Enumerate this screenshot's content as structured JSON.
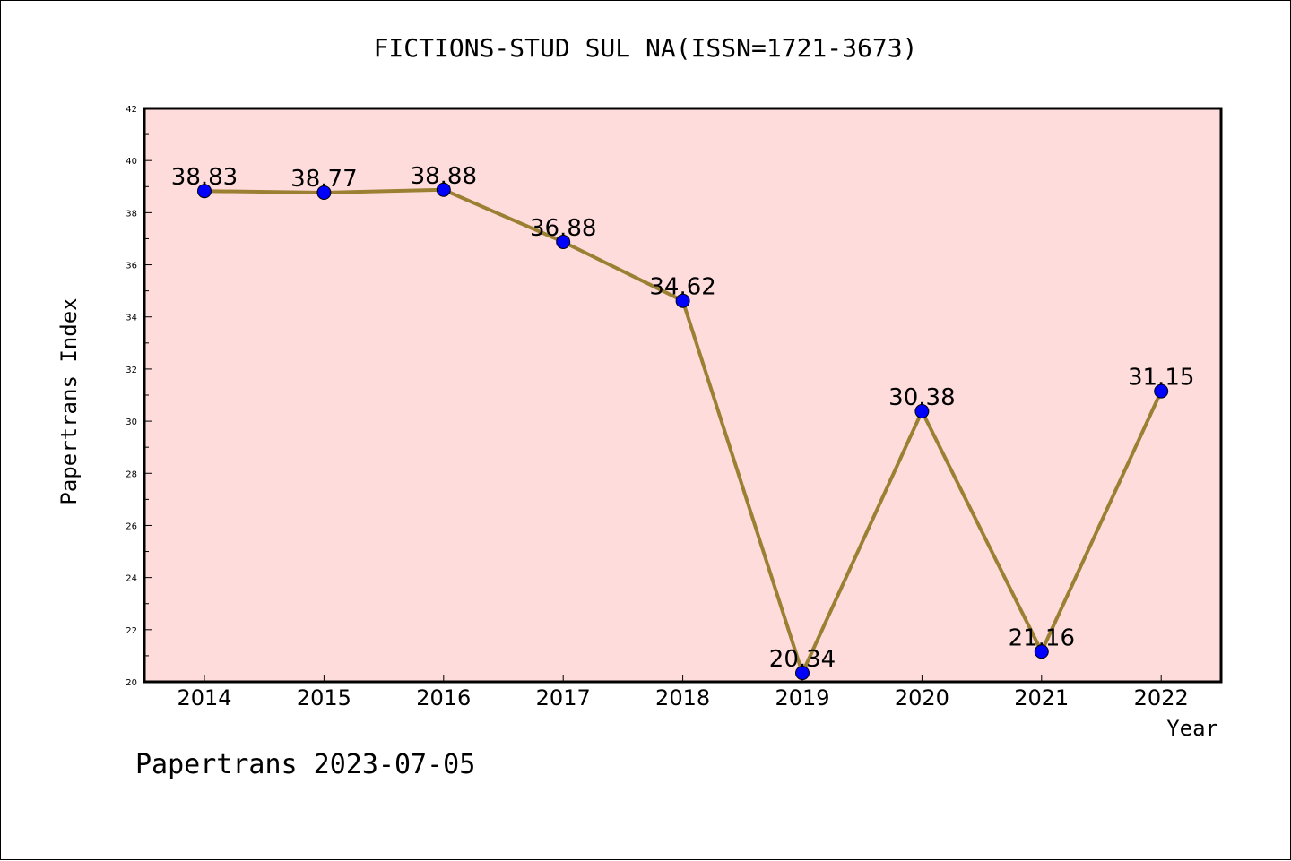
{
  "title": "FICTIONS-STUD SUL NA(ISSN=1721-3673)",
  "footer": "Papertrans 2023-07-05",
  "colors": {
    "plot_background": "#ffdcdc",
    "line": "#9b8033",
    "marker": "#0000ff"
  },
  "chart_data": {
    "type": "line",
    "title": "FICTIONS-STUD SUL NA(ISSN=1721-3673)",
    "xlabel": "Year",
    "ylabel": "Papertrans Index",
    "categories": [
      "2014",
      "2015",
      "2016",
      "2017",
      "2018",
      "2019",
      "2020",
      "2021",
      "2022"
    ],
    "series": [
      {
        "values": [
          38.83,
          38.77,
          38.88,
          36.88,
          34.62,
          20.34,
          30.38,
          21.16,
          31.15
        ],
        "labels": [
          "38.83",
          "38.77",
          "38.88",
          "36.88",
          "34.62",
          "20.34",
          "30.38",
          "21.16",
          "31.15"
        ]
      }
    ],
    "ylim": [
      20,
      42
    ],
    "yticks": [
      "20",
      "22",
      "24",
      "26",
      "28",
      "30",
      "32",
      "34",
      "36",
      "38",
      "40",
      "42"
    ],
    "grid": false,
    "legend": "none"
  }
}
